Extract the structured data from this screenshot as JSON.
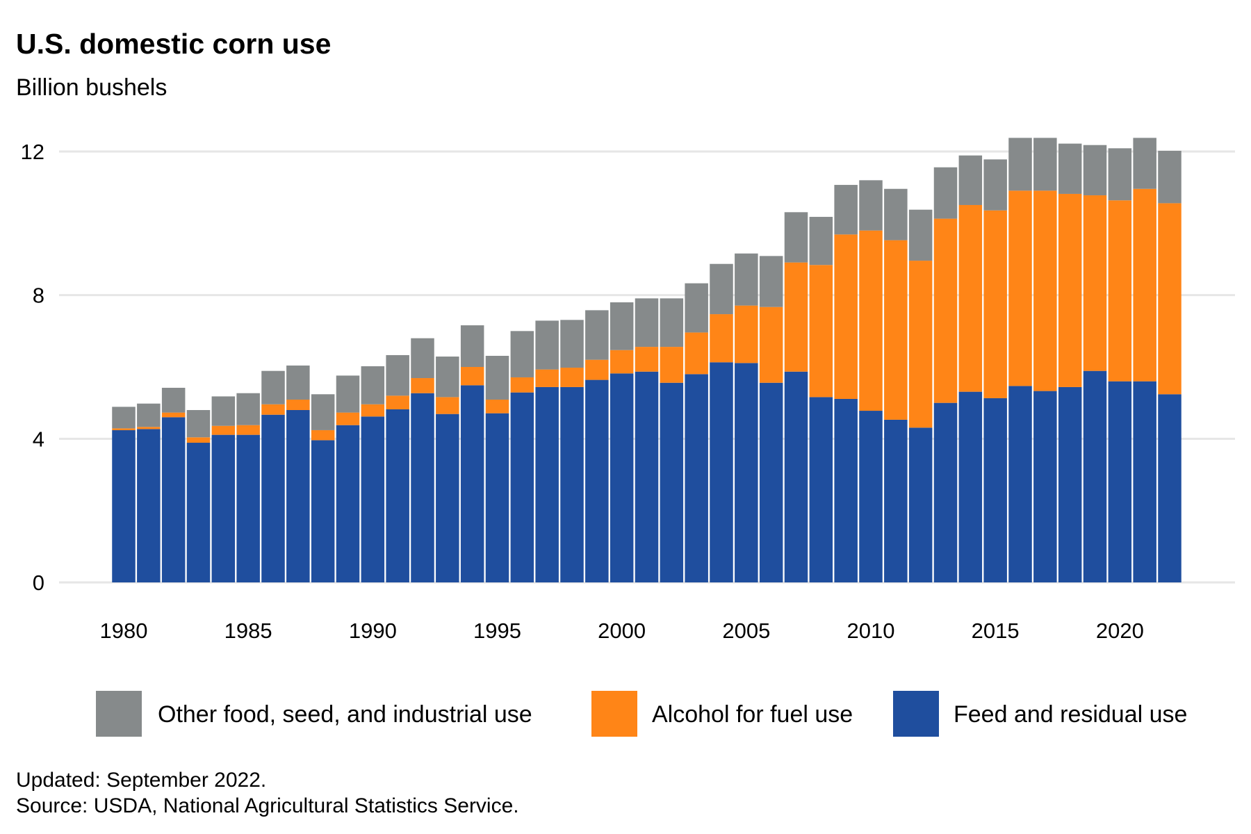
{
  "chart_data": {
    "type": "bar",
    "stacked": true,
    "title": "U.S. domestic corn use",
    "subtitle": "Billion bushels",
    "xlabel": "",
    "ylabel": "",
    "ylim": [
      0,
      12.5
    ],
    "yticks": [
      0,
      4,
      8,
      12
    ],
    "xticks": [
      1980,
      1985,
      1990,
      1995,
      2000,
      2005,
      2010,
      2015,
      2020
    ],
    "grid": true,
    "legend_position": "bottom",
    "categories": [
      1980,
      1981,
      1982,
      1983,
      1984,
      1985,
      1986,
      1987,
      1988,
      1989,
      1990,
      1991,
      1992,
      1993,
      1994,
      1995,
      1996,
      1997,
      1998,
      1999,
      2000,
      2001,
      2002,
      2003,
      2004,
      2005,
      2006,
      2007,
      2008,
      2009,
      2010,
      2011,
      2012,
      2013,
      2014,
      2015,
      2016,
      2017,
      2018,
      2019,
      2020,
      2021,
      2022
    ],
    "series": [
      {
        "name": "Feed and residual use",
        "color": "#1f4e9e",
        "values": [
          4.24,
          4.27,
          4.6,
          3.89,
          4.11,
          4.11,
          4.67,
          4.8,
          3.96,
          4.38,
          4.62,
          4.82,
          5.27,
          4.69,
          5.49,
          4.71,
          5.29,
          5.44,
          5.44,
          5.64,
          5.82,
          5.87,
          5.56,
          5.8,
          6.13,
          6.11,
          5.56,
          5.87,
          5.16,
          5.11,
          4.78,
          4.53,
          4.31,
          5.0,
          5.31,
          5.13,
          5.47,
          5.33,
          5.44,
          5.89,
          5.6,
          5.6,
          5.24
        ]
      },
      {
        "name": "Alcohol for fuel use",
        "color": "#ff8517",
        "values": [
          0.05,
          0.06,
          0.13,
          0.15,
          0.25,
          0.27,
          0.29,
          0.29,
          0.28,
          0.35,
          0.34,
          0.38,
          0.42,
          0.47,
          0.51,
          0.38,
          0.42,
          0.49,
          0.54,
          0.56,
          0.65,
          0.69,
          1.0,
          1.16,
          1.34,
          1.6,
          2.11,
          3.04,
          3.68,
          4.58,
          5.02,
          5.0,
          4.65,
          5.13,
          5.2,
          5.23,
          5.44,
          5.58,
          5.38,
          4.89,
          5.04,
          5.36,
          5.32
        ]
      },
      {
        "name": "Other food, seed, and industrial use",
        "color": "#868a8b",
        "values": [
          0.6,
          0.65,
          0.69,
          0.76,
          0.82,
          0.89,
          0.93,
          0.95,
          1.0,
          1.03,
          1.06,
          1.13,
          1.11,
          1.13,
          1.16,
          1.22,
          1.29,
          1.36,
          1.33,
          1.38,
          1.33,
          1.35,
          1.35,
          1.37,
          1.4,
          1.45,
          1.42,
          1.4,
          1.34,
          1.38,
          1.4,
          1.43,
          1.42,
          1.43,
          1.38,
          1.42,
          1.47,
          1.47,
          1.4,
          1.4,
          1.45,
          1.42,
          1.46
        ]
      }
    ],
    "legend_order": [
      2,
      1,
      0
    ]
  },
  "footer": {
    "updated": "Updated: September 2022.",
    "source": "Source: USDA, National Agricultural Statistics Service."
  }
}
